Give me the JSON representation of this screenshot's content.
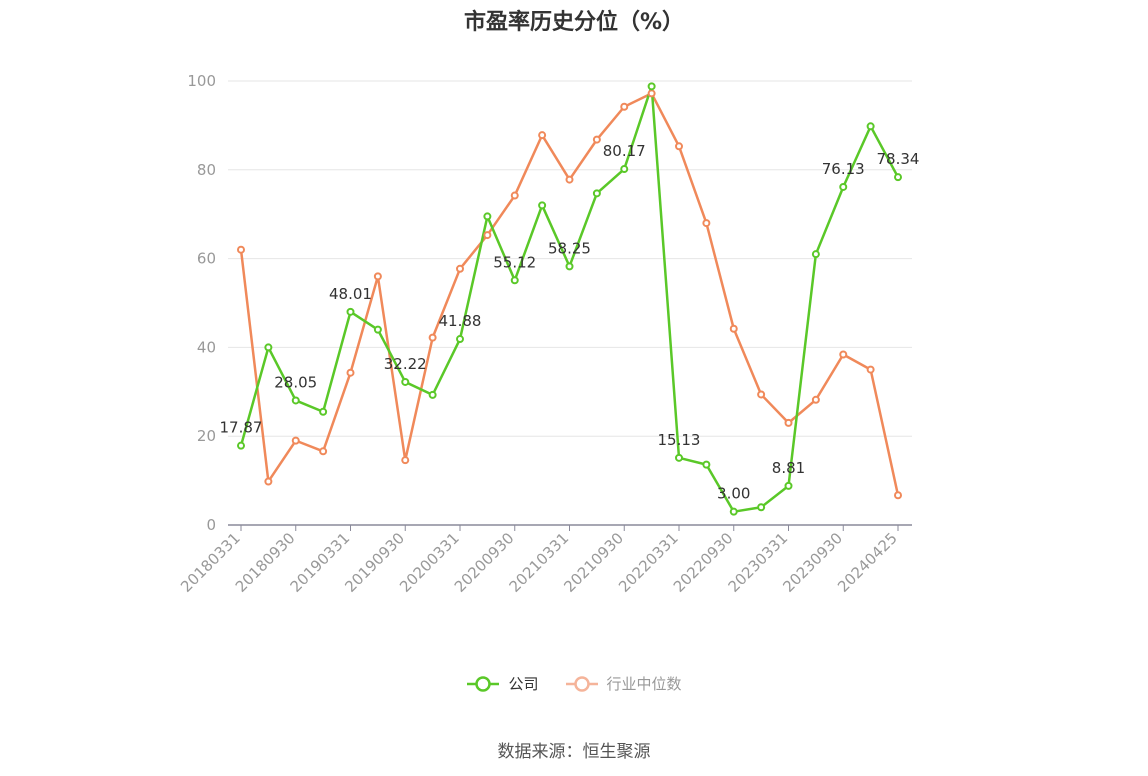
{
  "chart_data": {
    "type": "line",
    "title": "市盈率历史分位（%）",
    "source": "数据来源：恒生聚源",
    "ylim": [
      0,
      100
    ],
    "yticks": [
      0,
      20,
      40,
      60,
      80,
      100
    ],
    "grid": true,
    "legend_position": "bottom",
    "tick_labels": [
      "20180331",
      "20180930",
      "20190331",
      "20190930",
      "20200331",
      "20200930",
      "20210331",
      "20210930",
      "20220331",
      "20220930",
      "20230331",
      "20230930",
      "20240425"
    ],
    "x": [
      "20180331",
      "20180630",
      "20180930",
      "20181231",
      "20190331",
      "20190630",
      "20190930",
      "20191231",
      "20200331",
      "20200630",
      "20200930",
      "20201231",
      "20210331",
      "20210630",
      "20210930",
      "20211231",
      "20220331",
      "20220630",
      "20220930",
      "20221231",
      "20230331",
      "20230630",
      "20230930",
      "20231231",
      "20240425"
    ],
    "series": [
      {
        "name": "公司",
        "color": "#5ac828",
        "values": [
          17.87,
          40.0,
          28.05,
          25.5,
          48.01,
          44.0,
          32.22,
          29.3,
          41.88,
          69.5,
          55.12,
          72.0,
          58.25,
          74.7,
          80.17,
          98.8,
          15.13,
          13.6,
          3.0,
          4.0,
          8.81,
          61.0,
          76.13,
          89.8,
          78.34
        ],
        "labels": {
          "0": "17.87",
          "2": "28.05",
          "4": "48.01",
          "6": "32.22",
          "8": "41.88",
          "10": "55.12",
          "12": "58.25",
          "14": "80.17",
          "16": "15.13",
          "18": "3.00",
          "20": "8.81",
          "22": "76.13",
          "24": "78.34"
        }
      },
      {
        "name": "行业中位数",
        "color": "#f0895a",
        "values": [
          62.0,
          9.8,
          19.0,
          16.6,
          34.3,
          56.0,
          14.6,
          42.2,
          57.7,
          65.3,
          74.2,
          87.8,
          77.8,
          86.8,
          94.2,
          97.2,
          85.3,
          68.0,
          44.2,
          29.4,
          23.0,
          28.2,
          38.4,
          35.0,
          6.7
        ]
      }
    ]
  },
  "legend_icon_colors": {
    "company": "#5ac828",
    "industry": "#f5b49a"
  }
}
